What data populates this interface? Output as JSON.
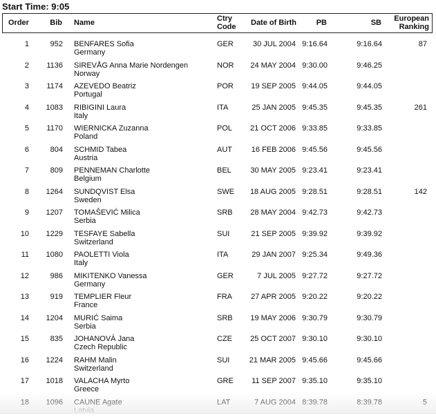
{
  "title": "Start Time: 9:05",
  "headers": {
    "order": "Order",
    "bib": "Bib",
    "name": "Name",
    "ctry1": "Ctry",
    "ctry2": "Code",
    "dob": "Date of Birth",
    "pb": "PB",
    "sb": "SB",
    "rank1": "European",
    "rank2": "Ranking"
  },
  "rows": [
    {
      "order": "1",
      "bib": "952",
      "name": "BENFARES Sofia",
      "country": "Germany",
      "code": "GER",
      "dob": "30 JUL 2004",
      "pb": "9:16.64",
      "sb": "9:16.64",
      "rank": "87"
    },
    {
      "order": "2",
      "bib": "1136",
      "name": "SIREVÅG Anna Marie Nordengen",
      "country": "Norway",
      "code": "NOR",
      "dob": "24 MAY 2004",
      "pb": "9:30.00",
      "sb": "9:46.25",
      "rank": ""
    },
    {
      "order": "3",
      "bib": "1174",
      "name": "AZEVEDO Beatriz",
      "country": "Portugal",
      "code": "POR",
      "dob": "19 SEP 2005",
      "pb": "9:44.05",
      "sb": "9:44.05",
      "rank": ""
    },
    {
      "order": "4",
      "bib": "1083",
      "name": "RIBIGINI Laura",
      "country": "Italy",
      "code": "ITA",
      "dob": "25 JAN 2005",
      "pb": "9:45.35",
      "sb": "9:45.35",
      "rank": "261"
    },
    {
      "order": "5",
      "bib": "1170",
      "name": "WIERNICKA Zuzanna",
      "country": "Poland",
      "code": "POL",
      "dob": "21 OCT 2006",
      "pb": "9:33.85",
      "sb": "9:33.85",
      "rank": ""
    },
    {
      "order": "6",
      "bib": "804",
      "name": "SCHMID Tabea",
      "country": "Austria",
      "code": "AUT",
      "dob": "16 FEB 2006",
      "pb": "9:45.56",
      "sb": "9:45.56",
      "rank": ""
    },
    {
      "order": "7",
      "bib": "809",
      "name": "PENNEMAN Charlotte",
      "country": "Belgium",
      "code": "BEL",
      "dob": "30 MAY 2005",
      "pb": "9:23.41",
      "sb": "9:23.41",
      "rank": ""
    },
    {
      "order": "8",
      "bib": "1264",
      "name": "SUNDQVIST Elsa",
      "country": "Sweden",
      "code": "SWE",
      "dob": "18 AUG 2005",
      "pb": "9:28.51",
      "sb": "9:28.51",
      "rank": "142"
    },
    {
      "order": "9",
      "bib": "1207",
      "name": "TOMAŠEVIĆ Milica",
      "country": "Serbia",
      "code": "SRB",
      "dob": "28 MAY 2004",
      "pb": "9:42.73",
      "sb": "9:42.73",
      "rank": ""
    },
    {
      "order": "10",
      "bib": "1229",
      "name": "TESFAYE Sabella",
      "country": "Switzerland",
      "code": "SUI",
      "dob": "21 SEP 2005",
      "pb": "9:39.92",
      "sb": "9:39.92",
      "rank": ""
    },
    {
      "order": "11",
      "bib": "1080",
      "name": "PAOLETTI Viola",
      "country": "Italy",
      "code": "ITA",
      "dob": "29 JAN 2007",
      "pb": "9:25.34",
      "sb": "9:49.36",
      "rank": ""
    },
    {
      "order": "12",
      "bib": "986",
      "name": "MIKITENKO Vanessa",
      "country": "Germany",
      "code": "GER",
      "dob": "7 JUL 2005",
      "pb": "9:27.72",
      "sb": "9:27.72",
      "rank": ""
    },
    {
      "order": "13",
      "bib": "919",
      "name": "TEMPLIER Fleur",
      "country": "France",
      "code": "FRA",
      "dob": "27 APR 2005",
      "pb": "9:20.22",
      "sb": "9:20.22",
      "rank": ""
    },
    {
      "order": "14",
      "bib": "1204",
      "name": "MURIĆ Saima",
      "country": "Serbia",
      "code": "SRB",
      "dob": "19 MAY 2006",
      "pb": "9:30.79",
      "sb": "9:30.79",
      "rank": ""
    },
    {
      "order": "15",
      "bib": "835",
      "name": "JOHANOVÁ Jana",
      "country": "Czech Republic",
      "code": "CZE",
      "dob": "25 OCT 2007",
      "pb": "9:30.10",
      "sb": "9:30.10",
      "rank": ""
    },
    {
      "order": "16",
      "bib": "1224",
      "name": "RAHM Malin",
      "country": "Switzerland",
      "code": "SUI",
      "dob": "21 MAR 2005",
      "pb": "9:45.66",
      "sb": "9:45.66",
      "rank": ""
    },
    {
      "order": "17",
      "bib": "1018",
      "name": "VALACHA Myrto",
      "country": "Greece",
      "code": "GRE",
      "dob": "11 SEP 2007",
      "pb": "9:35.10",
      "sb": "9:35.10",
      "rank": ""
    },
    {
      "order": "18",
      "bib": "1096",
      "name": "CAUNE Agate",
      "country": "Latvia",
      "code": "LAT",
      "dob": "7 AUG 2004",
      "pb": "8:39.78",
      "sb": "8:39.78",
      "rank": "5"
    }
  ]
}
